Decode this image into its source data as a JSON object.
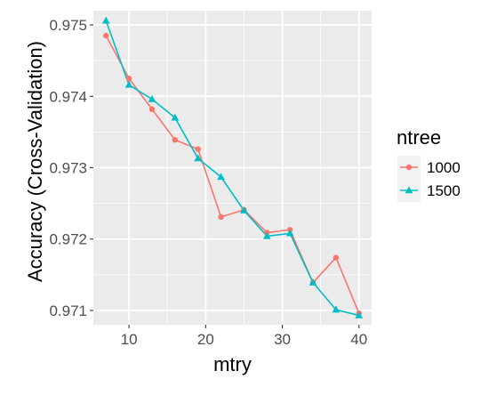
{
  "chart_data": {
    "type": "line",
    "xlabel": "mtry",
    "ylabel": "Accuracy (Cross-Validation)",
    "xlim": [
      5.35,
      41.65
    ],
    "ylim": [
      0.9708,
      0.9752
    ],
    "x_ticks": [
      10,
      20,
      30,
      40
    ],
    "x_tick_labels": [
      "10",
      "20",
      "30",
      "40"
    ],
    "y_ticks": [
      0.971,
      0.972,
      0.973,
      0.974,
      0.975
    ],
    "y_tick_labels": [
      "0.971",
      "0.972",
      "0.973",
      "0.974",
      "0.975"
    ],
    "grid": true,
    "legend": {
      "title": "ntree",
      "position": "right"
    },
    "x": [
      7,
      10,
      13,
      16,
      19,
      22,
      25,
      28,
      31,
      34,
      37,
      40
    ],
    "series": [
      {
        "name": "1000",
        "color": "#F8766D",
        "marker": "circle",
        "values": [
          0.97485,
          0.97425,
          0.97382,
          0.97339,
          0.97326,
          0.97231,
          0.97241,
          0.97209,
          0.97213,
          0.97139,
          0.97174,
          0.97096
        ]
      },
      {
        "name": "1500",
        "color": "#00BFC4",
        "marker": "triangle",
        "values": [
          0.97506,
          0.97416,
          0.97396,
          0.9737,
          0.97313,
          0.97287,
          0.9724,
          0.97204,
          0.97208,
          0.97139,
          0.97101,
          0.97093
        ]
      }
    ]
  }
}
